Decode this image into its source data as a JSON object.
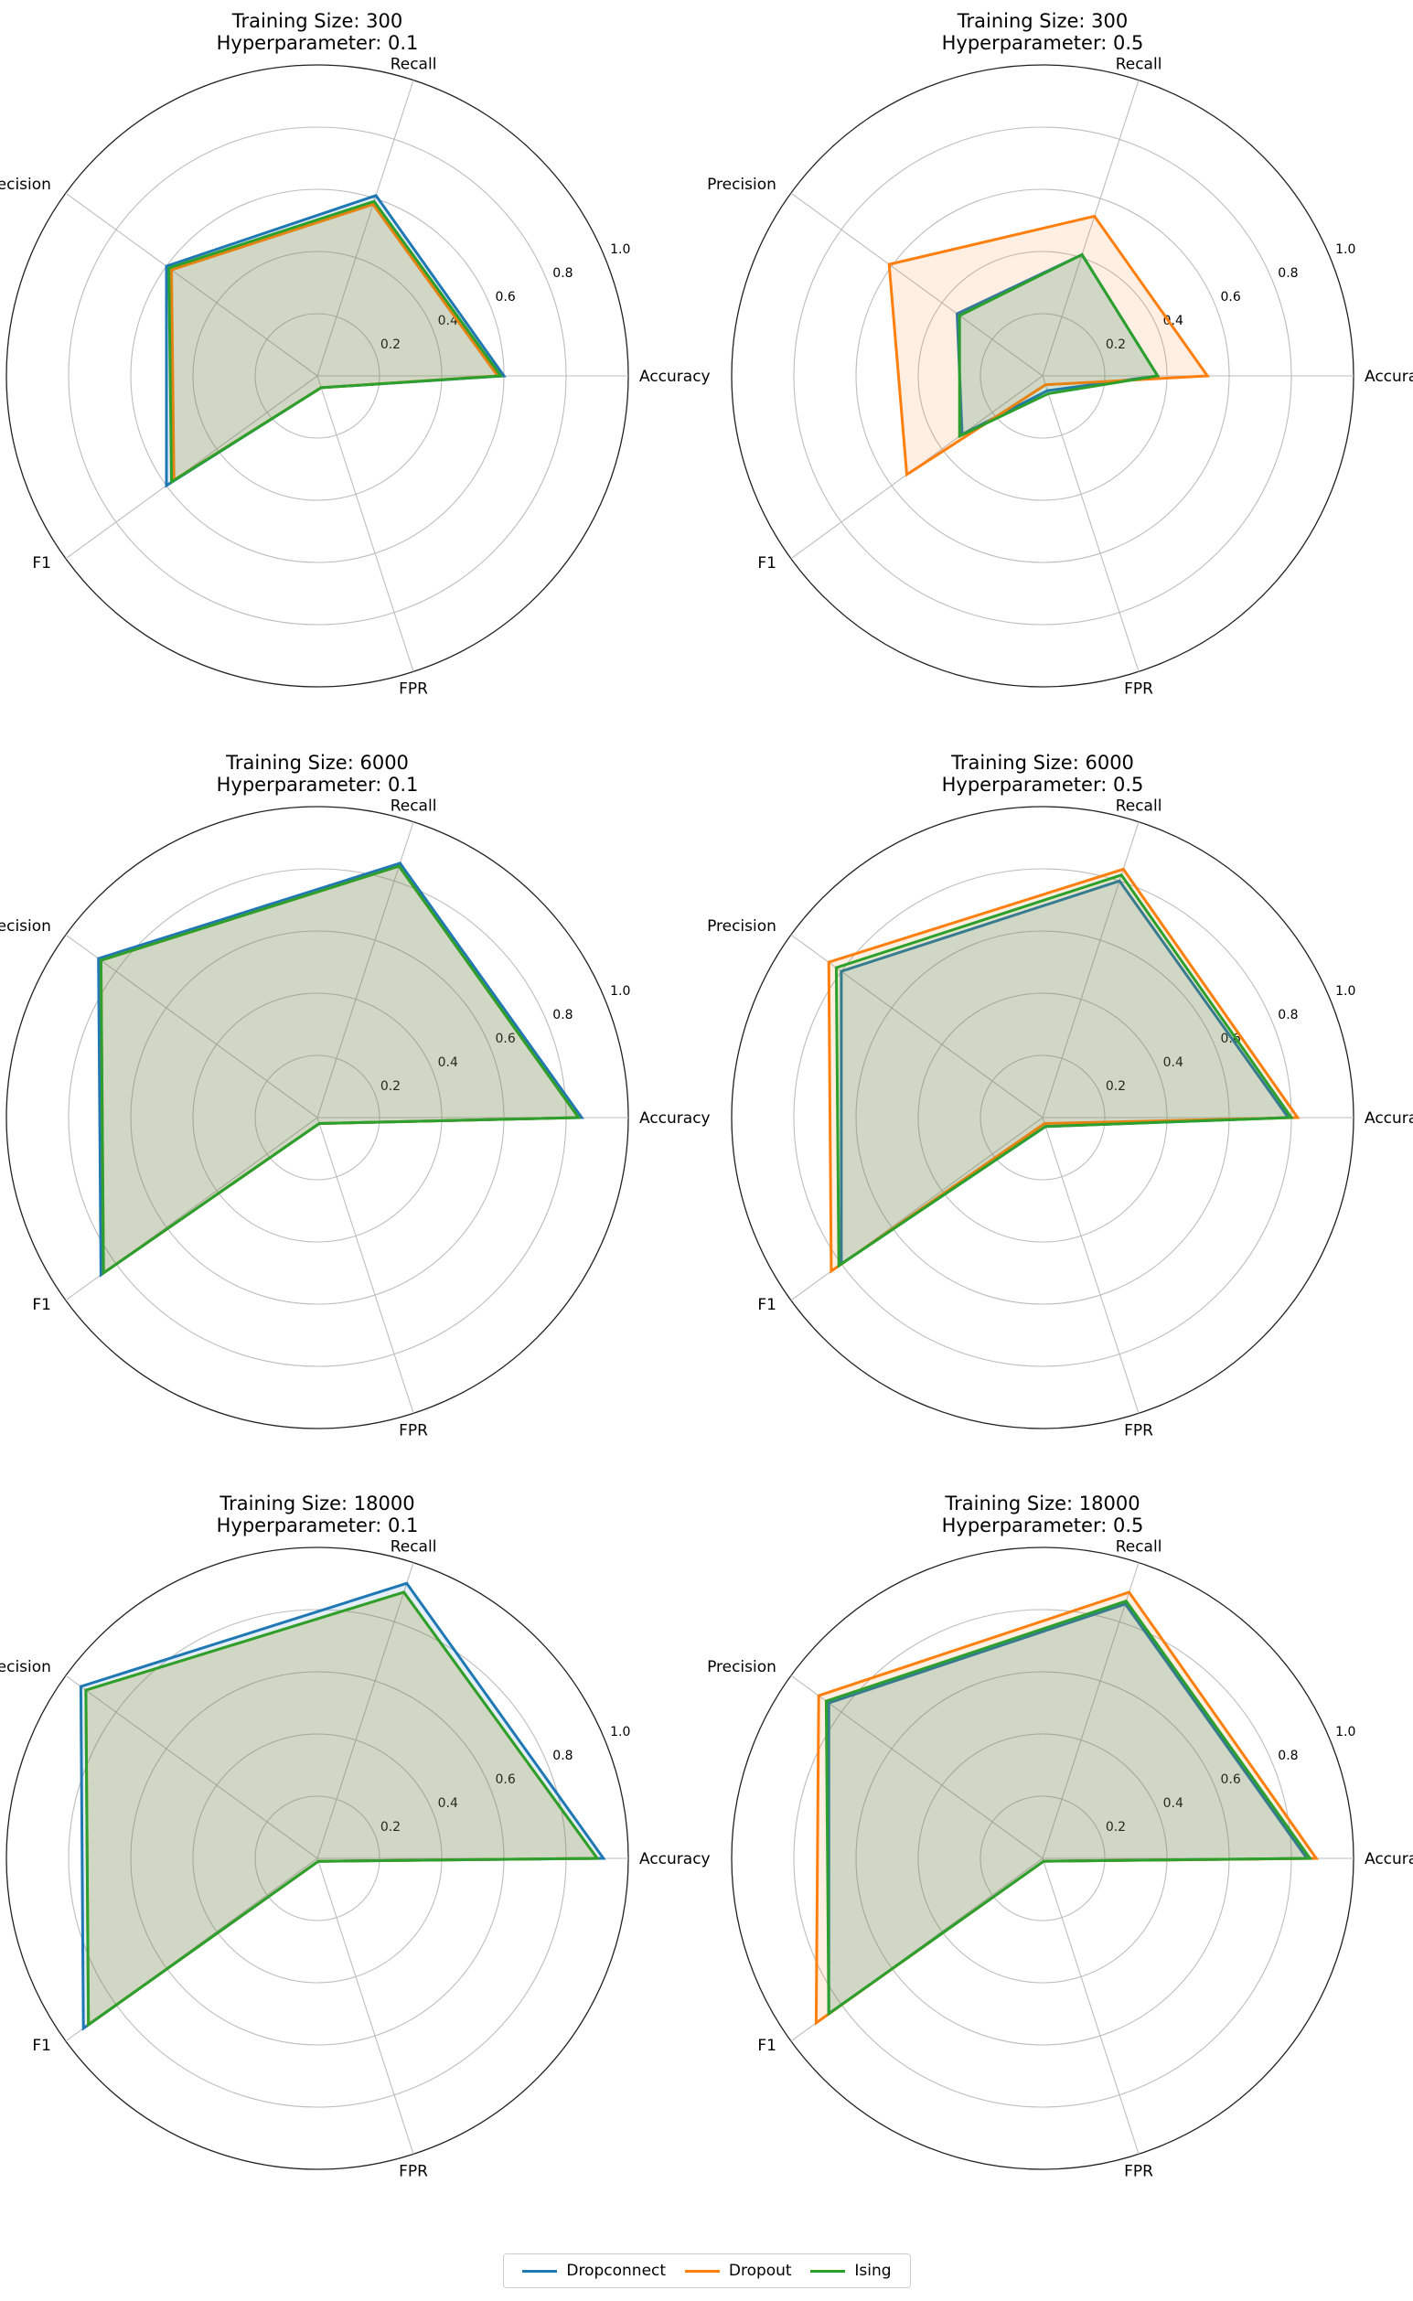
{
  "chart_data": {
    "type": "radar",
    "axes": [
      "Accuracy",
      "Recall",
      "Precision",
      "F1",
      "FPR"
    ],
    "radial_ticks": [
      "0.2",
      "0.4",
      "0.6",
      "0.8",
      "1.0"
    ],
    "rlim": [
      0,
      1.0
    ],
    "series_names": [
      "Dropconnect",
      "Dropout",
      "Ising"
    ],
    "colors": {
      "Dropconnect": "#1f77b4",
      "Dropout": "#ff7f0e",
      "Ising": "#2ca02c"
    },
    "panels": [
      {
        "title_line1": "Training Size: 300",
        "title_line2": "Hyperparameter: 0.1",
        "series": [
          {
            "name": "Dropconnect",
            "values": [
              0.6,
              0.61,
              0.6,
              0.6,
              0.04
            ]
          },
          {
            "name": "Dropout",
            "values": [
              0.58,
              0.58,
              0.58,
              0.57,
              0.04
            ]
          },
          {
            "name": "Ising",
            "values": [
              0.59,
              0.59,
              0.59,
              0.58,
              0.04
            ]
          }
        ]
      },
      {
        "title_line1": "Training Size: 300",
        "title_line2": "Hyperparameter: 0.5",
        "series": [
          {
            "name": "Dropconnect",
            "values": [
              0.37,
              0.41,
              0.34,
              0.32,
              0.05
            ]
          },
          {
            "name": "Dropout",
            "values": [
              0.53,
              0.54,
              0.61,
              0.54,
              0.03
            ]
          },
          {
            "name": "Ising",
            "values": [
              0.37,
              0.41,
              0.33,
              0.33,
              0.06
            ]
          }
        ]
      },
      {
        "title_line1": "Training Size: 6000",
        "title_line2": "Hyperparameter: 0.1",
        "series": [
          {
            "name": "Dropconnect",
            "values": [
              0.85,
              0.86,
              0.87,
              0.86,
              0.02
            ]
          },
          {
            "name": "Dropout",
            "values": [
              0.84,
              0.85,
              0.86,
              0.85,
              0.02
            ]
          },
          {
            "name": "Ising",
            "values": [
              0.84,
              0.85,
              0.86,
              0.85,
              0.02
            ]
          }
        ]
      },
      {
        "title_line1": "Training Size: 6000",
        "title_line2": "Hyperparameter: 0.5",
        "series": [
          {
            "name": "Dropconnect",
            "values": [
              0.79,
              0.8,
              0.8,
              0.8,
              0.03
            ]
          },
          {
            "name": "Dropout",
            "values": [
              0.82,
              0.84,
              0.85,
              0.84,
              0.02
            ]
          },
          {
            "name": "Ising",
            "values": [
              0.8,
              0.82,
              0.82,
              0.81,
              0.03
            ]
          }
        ]
      },
      {
        "title_line1": "Training Size: 18000",
        "title_line2": "Hyperparameter: 0.1",
        "series": [
          {
            "name": "Dropconnect",
            "values": [
              0.92,
              0.93,
              0.94,
              0.93,
              0.01
            ]
          },
          {
            "name": "Dropout",
            "values": [
              0.9,
              0.9,
              0.92,
              0.91,
              0.01
            ]
          },
          {
            "name": "Ising",
            "values": [
              0.9,
              0.9,
              0.92,
              0.91,
              0.01
            ]
          }
        ]
      },
      {
        "title_line1": "Training Size: 18000",
        "title_line2": "Hyperparameter: 0.5",
        "series": [
          {
            "name": "Dropconnect",
            "values": [
              0.85,
              0.86,
              0.85,
              0.85,
              0.01
            ]
          },
          {
            "name": "Dropout",
            "values": [
              0.88,
              0.9,
              0.89,
              0.9,
              0.01
            ]
          },
          {
            "name": "Ising",
            "values": [
              0.86,
              0.87,
              0.86,
              0.85,
              0.01
            ]
          }
        ]
      }
    ]
  },
  "legend": {
    "items": [
      {
        "label": "Dropconnect",
        "color": "#1f77b4"
      },
      {
        "label": "Dropout",
        "color": "#ff7f0e"
      },
      {
        "label": "Ising",
        "color": "#2ca02c"
      }
    ]
  }
}
